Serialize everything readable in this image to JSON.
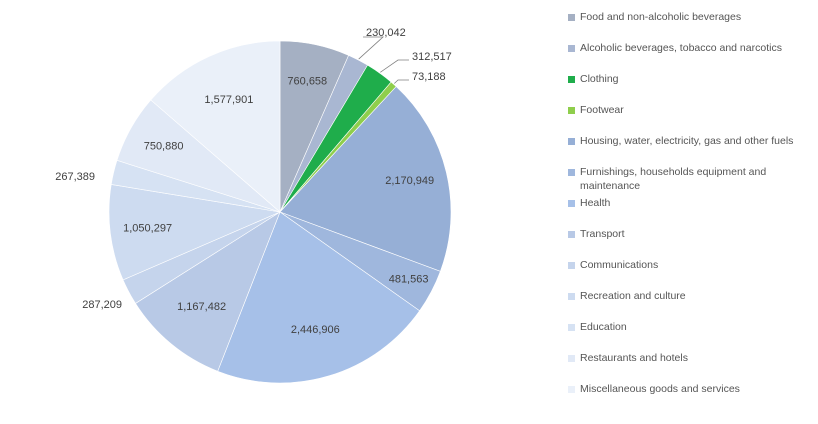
{
  "chart_data": {
    "type": "pie",
    "categories": [
      "Food and non-alcoholic beverages",
      "Alcoholic beverages, tobacco and narcotics",
      "Clothing",
      "Footwear",
      "Housing, water, electricity, gas and other fuels",
      "Furnishings, households equipment and maintenance",
      "Health",
      "Transport",
      "Communications",
      "Recreation and culture",
      "Education",
      "Restaurants and hotels",
      "Miscellaneous goods and services"
    ],
    "value_labels": [
      "760,658",
      "230,042",
      "312,517",
      "73,188",
      "2,170,949",
      "481,563",
      "2,446,906",
      "1,167,482",
      "287,209",
      "1,050,297",
      "267,389",
      "750,880",
      "1,577,901"
    ],
    "values": [
      760658,
      230042,
      312517,
      73188,
      2170949,
      481563,
      2446906,
      1167482,
      287209,
      1050297,
      267389,
      750880,
      1577901
    ],
    "colors": [
      "#a5b0c3",
      "#a9b7d2",
      "#1fad4b",
      "#8fce4c",
      "#96afd6",
      "#9fb7dd",
      "#a6c0e8",
      "#b8c9e6",
      "#c5d4ec",
      "#cddbf0",
      "#d6e2f3",
      "#e1e9f6",
      "#eaf0f9"
    ],
    "legend_position": "right"
  }
}
